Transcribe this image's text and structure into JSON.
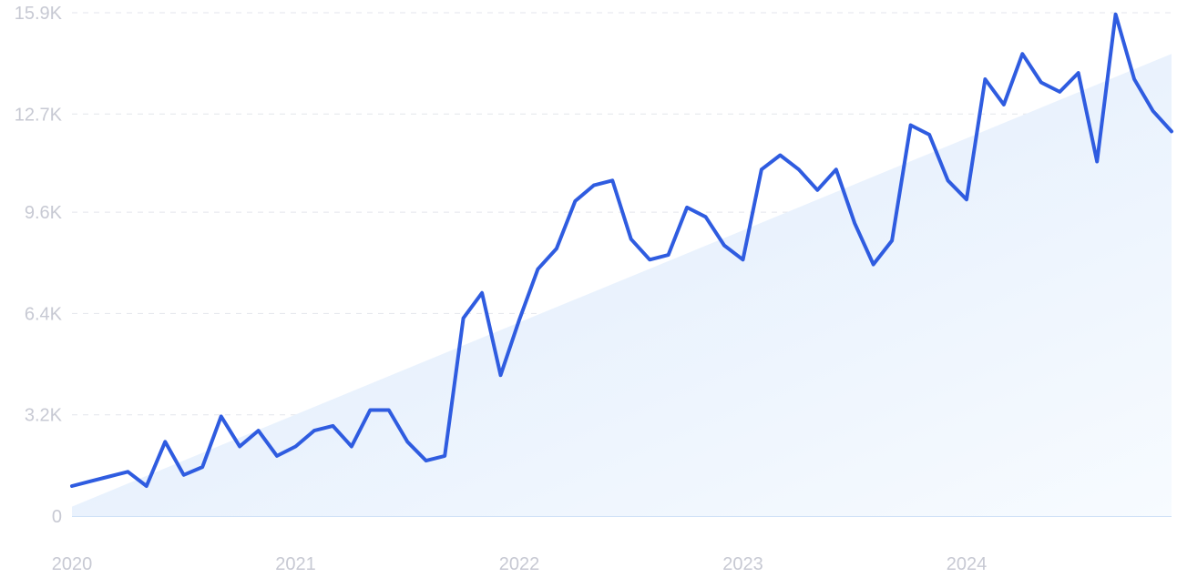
{
  "chart_data": {
    "type": "line",
    "title": "",
    "xlabel": "",
    "ylabel": "",
    "grid": true,
    "legend": "none",
    "x_ticks": [
      "2020",
      "2021",
      "2022",
      "2023",
      "2024"
    ],
    "y_ticks": [
      "0",
      "3.2K",
      "6.4K",
      "9.6K",
      "12.7K",
      "15.9K"
    ],
    "y_tick_values": [
      0,
      3200,
      6400,
      9600,
      12700,
      15900
    ],
    "ylim": [
      0,
      15900
    ],
    "xlim": [
      "2020-01",
      "2024-11"
    ],
    "colors": {
      "line": "#2f5ce0",
      "trend_fill_start": "#dce9fb",
      "trend_fill_end": "#f7fbff",
      "baseline": "#cfe1f7"
    },
    "series": [
      {
        "values": [
          [
            "2020-01",
            950
          ],
          [
            "2020-02",
            1100
          ],
          [
            "2020-03",
            1250
          ],
          [
            "2020-04",
            1400
          ],
          [
            "2020-05",
            950
          ],
          [
            "2020-06",
            2350
          ],
          [
            "2020-07",
            1300
          ],
          [
            "2020-08",
            1550
          ],
          [
            "2020-09",
            3150
          ],
          [
            "2020-10",
            2200
          ],
          [
            "2020-11",
            2700
          ],
          [
            "2020-12",
            1900
          ],
          [
            "2021-01",
            2200
          ],
          [
            "2021-02",
            2700
          ],
          [
            "2021-03",
            2850
          ],
          [
            "2021-04",
            2200
          ],
          [
            "2021-05",
            3350
          ],
          [
            "2021-06",
            3350
          ],
          [
            "2021-07",
            2350
          ],
          [
            "2021-08",
            1750
          ],
          [
            "2021-09",
            1900
          ],
          [
            "2021-10",
            6250
          ],
          [
            "2021-11",
            7050
          ],
          [
            "2021-12",
            4450
          ],
          [
            "2022-01",
            6200
          ],
          [
            "2022-02",
            7800
          ],
          [
            "2022-03",
            8450
          ],
          [
            "2022-04",
            9950
          ],
          [
            "2022-05",
            10450
          ],
          [
            "2022-06",
            10600
          ],
          [
            "2022-07",
            8750
          ],
          [
            "2022-08",
            8100
          ],
          [
            "2022-09",
            8250
          ],
          [
            "2022-10",
            9750
          ],
          [
            "2022-11",
            9450
          ],
          [
            "2022-12",
            8550
          ],
          [
            "2023-01",
            8100
          ],
          [
            "2023-02",
            10950
          ],
          [
            "2023-03",
            11400
          ],
          [
            "2023-04",
            10950
          ],
          [
            "2023-05",
            10300
          ],
          [
            "2023-06",
            10950
          ],
          [
            "2023-07",
            9250
          ],
          [
            "2023-08",
            7950
          ],
          [
            "2023-09",
            8700
          ],
          [
            "2023-10",
            12350
          ],
          [
            "2023-11",
            12050
          ],
          [
            "2023-12",
            10600
          ],
          [
            "2024-01",
            10000
          ],
          [
            "2024-02",
            13800
          ],
          [
            "2024-03",
            13000
          ],
          [
            "2024-04",
            14600
          ],
          [
            "2024-05",
            13700
          ],
          [
            "2024-06",
            13400
          ],
          [
            "2024-07",
            14000
          ],
          [
            "2024-08",
            11200
          ],
          [
            "2024-09",
            15850
          ],
          [
            "2024-10",
            13800
          ],
          [
            "2024-11",
            12800
          ],
          [
            "2024-12",
            12150
          ]
        ]
      }
    ],
    "trend": {
      "start": [
        "2020-01",
        300
      ],
      "end": [
        "2024-12",
        14600
      ]
    }
  }
}
